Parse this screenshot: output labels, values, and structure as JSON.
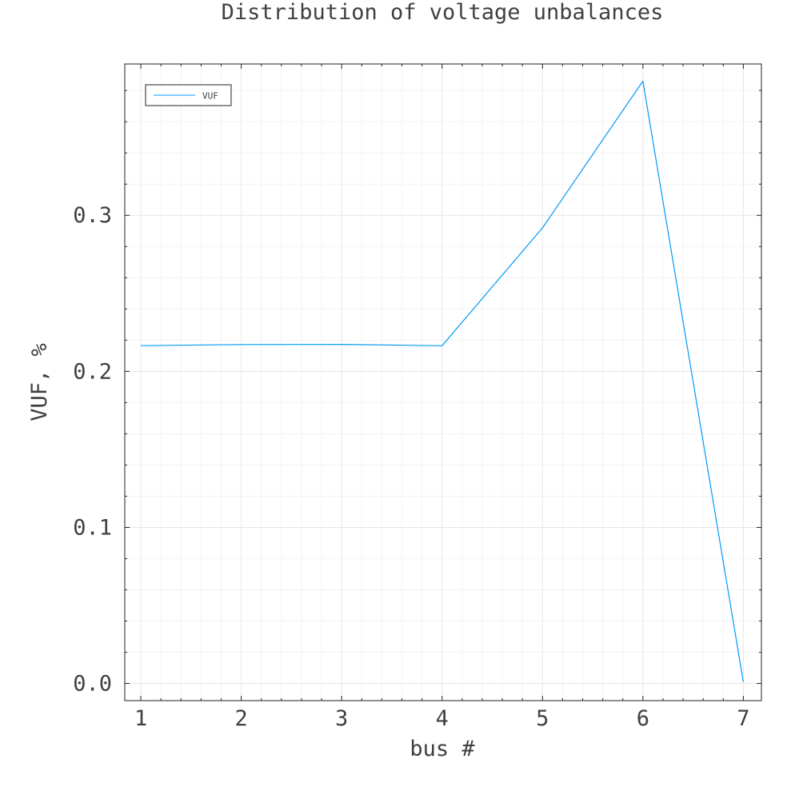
{
  "chart_data": {
    "type": "line",
    "title": "Distribution of voltage unbalances",
    "xlabel": "bus #",
    "ylabel": "VUF, %",
    "x": [
      1,
      2,
      3,
      4,
      5,
      6,
      7
    ],
    "xticks": [
      "1",
      "2",
      "3",
      "4",
      "5",
      "6",
      "7"
    ],
    "yticks": [
      "0.0",
      "0.1",
      "0.2",
      "0.3"
    ],
    "ytick_values": [
      0.0,
      0.1,
      0.2,
      0.3
    ],
    "xlim": [
      0.84,
      7.18
    ],
    "ylim": [
      -0.011,
      0.397
    ],
    "grid": true,
    "legend_position": "top-left",
    "series": [
      {
        "name": "VUF",
        "color": "#009af9",
        "values": [
          0.2165,
          0.2172,
          0.2173,
          0.2164,
          0.292,
          0.386,
          0.001
        ]
      }
    ]
  }
}
